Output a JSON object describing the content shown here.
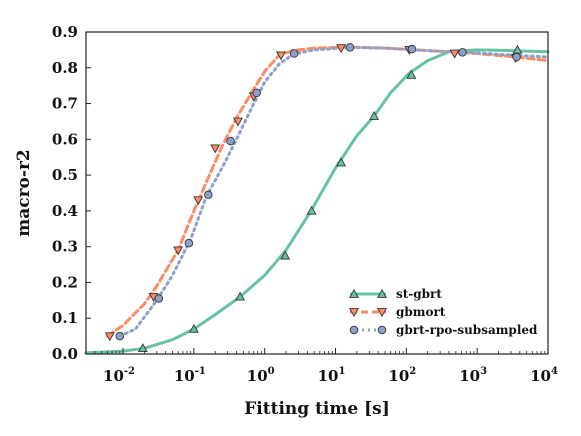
{
  "chart_data": {
    "type": "line",
    "title": "",
    "xlabel": "Fitting time [s]",
    "ylabel": "macro-r2",
    "x_scale": "log",
    "xlim": [
      0.003,
      10000
    ],
    "ylim": [
      0.0,
      0.9
    ],
    "x_ticks": [
      {
        "value": 0.01,
        "base": "10",
        "exp": "-2"
      },
      {
        "value": 0.1,
        "base": "10",
        "exp": "-1"
      },
      {
        "value": 1,
        "base": "10",
        "exp": "0"
      },
      {
        "value": 10,
        "base": "10",
        "exp": "1"
      },
      {
        "value": 100,
        "base": "10",
        "exp": "2"
      },
      {
        "value": 1000,
        "base": "10",
        "exp": "3"
      },
      {
        "value": 10000,
        "base": "10",
        "exp": "4"
      }
    ],
    "y_ticks": [
      "0.0",
      "0.1",
      "0.2",
      "0.3",
      "0.4",
      "0.5",
      "0.6",
      "0.7",
      "0.8",
      "0.9"
    ],
    "grid": false,
    "legend_position": "lower-right",
    "series": [
      {
        "name": "st-gbrt",
        "color": "#66c2a5",
        "line_style": "solid",
        "marker": "triangle-up",
        "curve_x": [
          0.003,
          0.01,
          0.02,
          0.05,
          0.1,
          0.2,
          0.45,
          1,
          2,
          4.5,
          10,
          20,
          35,
          60,
          110,
          200,
          400,
          1000,
          3000,
          10000
        ],
        "curve_y": [
          0.003,
          0.008,
          0.016,
          0.04,
          0.07,
          0.11,
          0.16,
          0.22,
          0.29,
          0.4,
          0.52,
          0.61,
          0.665,
          0.73,
          0.785,
          0.82,
          0.845,
          0.85,
          0.848,
          0.845
        ],
        "points_x": [
          0.019,
          0.1,
          0.45,
          1.95,
          4.6,
          12,
          35,
          118,
          3700
        ],
        "points_y": [
          0.016,
          0.07,
          0.16,
          0.275,
          0.4,
          0.535,
          0.665,
          0.78,
          0.85
        ]
      },
      {
        "name": "gbmort",
        "color": "#fc8d62",
        "line_style": "dashed",
        "marker": "triangle-down",
        "curve_x": [
          0.006,
          0.01,
          0.02,
          0.03,
          0.06,
          0.1,
          0.15,
          0.25,
          0.4,
          0.7,
          1,
          1.6,
          2.5,
          5,
          15,
          50,
          200,
          1000,
          3500,
          10000
        ],
        "curve_y": [
          0.05,
          0.08,
          0.14,
          0.19,
          0.29,
          0.4,
          0.48,
          0.58,
          0.66,
          0.74,
          0.79,
          0.835,
          0.848,
          0.855,
          0.858,
          0.855,
          0.848,
          0.84,
          0.83,
          0.82
        ],
        "points_x": [
          0.0065,
          0.027,
          0.06,
          0.115,
          0.2,
          0.42,
          0.7,
          1.7,
          12,
          110,
          480,
          3500
        ],
        "points_y": [
          0.05,
          0.16,
          0.29,
          0.43,
          0.575,
          0.65,
          0.72,
          0.835,
          0.855,
          0.85,
          0.84,
          0.828
        ]
      },
      {
        "name": "gbrt-rpo-subsampled",
        "color": "#8da0cb",
        "line_style": "dotted",
        "marker": "circle",
        "curve_x": [
          0.009,
          0.015,
          0.03,
          0.05,
          0.09,
          0.15,
          0.25,
          0.4,
          0.7,
          1,
          1.6,
          2.5,
          5,
          16,
          50,
          200,
          700,
          3500,
          10000
        ],
        "curve_y": [
          0.05,
          0.07,
          0.15,
          0.22,
          0.32,
          0.44,
          0.52,
          0.6,
          0.7,
          0.76,
          0.81,
          0.838,
          0.85,
          0.857,
          0.855,
          0.848,
          0.843,
          0.835,
          0.83
        ],
        "points_x": [
          0.009,
          0.032,
          0.085,
          0.16,
          0.33,
          0.77,
          2.6,
          16,
          120,
          620,
          3600
        ],
        "points_y": [
          0.05,
          0.155,
          0.31,
          0.445,
          0.595,
          0.73,
          0.84,
          0.857,
          0.852,
          0.843,
          0.83
        ]
      }
    ]
  }
}
